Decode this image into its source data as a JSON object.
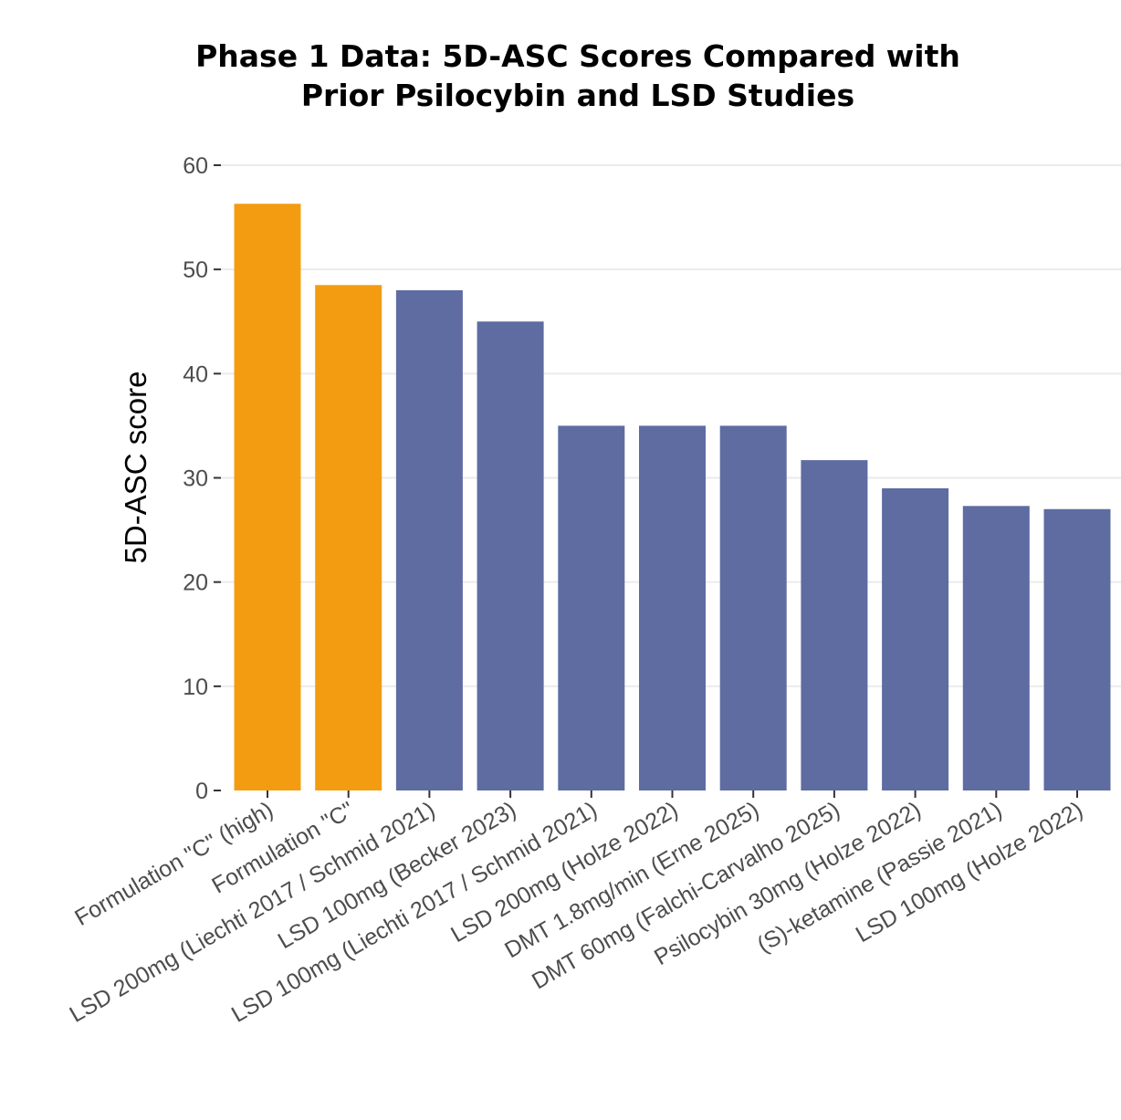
{
  "chart_data": {
    "type": "bar",
    "title_line1": "Phase 1 Data: 5D-ASC Scores Compared with",
    "title_line2": "Prior Psilocybin and LSD Studies",
    "xlabel": "",
    "ylabel": "5D-ASC score",
    "ylim": [
      0,
      60
    ],
    "yticks": [
      0,
      10,
      20,
      30,
      40,
      50,
      60
    ],
    "grid": true,
    "legend": "none",
    "categories": [
      "Formulation \"C\" (high)",
      "Formulation \"C\"",
      "LSD 200mg (Liechti 2017 / Schmid 2021)",
      "LSD 100mg (Becker 2023)",
      "LSD 100mg (Liechti 2017 / Schmid 2021)",
      "LSD 200mg (Holze 2022)",
      "DMT 1.8mg/min (Erne 2025)",
      "DMT 60mg (Falchi-Carvalho 2025)",
      "Psilocybin 30mg (Holze 2022)",
      "(S)-ketamine (Passie 2021)",
      "LSD 100mg (Holze 2022)"
    ],
    "values": [
      56.3,
      48.5,
      48.0,
      45.0,
      35.0,
      35.0,
      35.0,
      31.7,
      29.0,
      27.3,
      27.0
    ],
    "bar_colors": [
      "#f39c12",
      "#f39c12",
      "#5e6ca2",
      "#5e6ca2",
      "#5e6ca2",
      "#5e6ca2",
      "#5e6ca2",
      "#5e6ca2",
      "#5e6ca2",
      "#5e6ca2",
      "#5e6ca2"
    ]
  },
  "colors": {
    "highlight": "#f39c12",
    "comparator": "#5e6ca2",
    "grid": "#ebebeb",
    "tick_text": "#4d4d4d"
  }
}
